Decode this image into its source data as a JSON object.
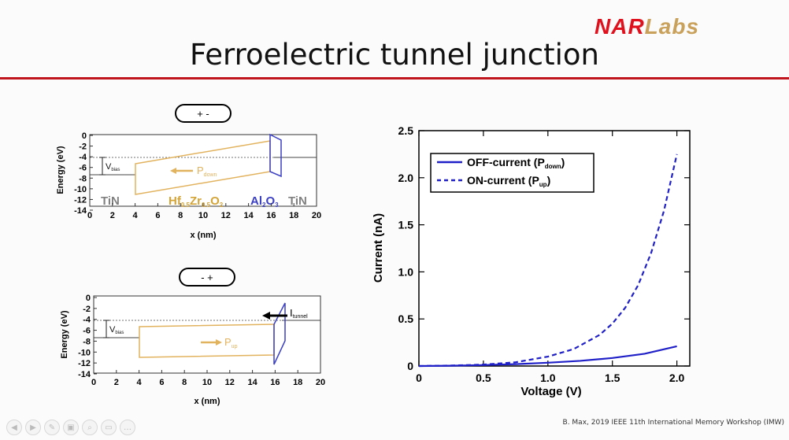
{
  "logo": {
    "part1": "NAR",
    "part2": "Labs"
  },
  "slide_title": "Ferroelectric tunnel junction",
  "top_diagram": {
    "bias_box": "+   -",
    "ylabel": "Energy (eV)",
    "xlabel": "x (nm)",
    "yticks": [
      "0",
      "-2",
      "-4",
      "-6",
      "-8",
      "-10",
      "-12",
      "-14"
    ],
    "xticks": [
      "0",
      "2",
      "4",
      "6",
      "8",
      "10",
      "12",
      "14",
      "16",
      "18",
      "20"
    ],
    "vbias_main": "V",
    "vbias_sub": "bias",
    "p_main": "P",
    "p_sub": "down",
    "tin_left": "TiN",
    "hzo": [
      "Hf",
      "0.5",
      "Zr",
      "0.5",
      "O",
      "2"
    ],
    "al2o3": [
      "Al",
      "2",
      "O",
      "3"
    ],
    "tin_right": "TiN",
    "colors": {
      "barrier": "#e2b35e",
      "al2o3": "#3b3fc4",
      "label_gold": "#d4a437",
      "label_gray": "#808080"
    }
  },
  "bottom_diagram": {
    "bias_box": "-   +",
    "ylabel": "Energy (eV)",
    "xlabel": "x (nm)",
    "yticks": [
      "0",
      "-2",
      "-4",
      "-6",
      "-8",
      "-10",
      "-12",
      "-14"
    ],
    "xticks": [
      "0",
      "2",
      "4",
      "6",
      "8",
      "10",
      "12",
      "14",
      "16",
      "18",
      "20"
    ],
    "vbias_main": "V",
    "vbias_sub": "bias",
    "p_main": "P",
    "p_sub": "up",
    "i_main": "I",
    "i_sub": "tunnel"
  },
  "chart_data": {
    "type": "line",
    "xlabel": "Voltage (V)",
    "ylabel": "Current (nA)",
    "xlim": [
      0,
      2.1
    ],
    "ylim": [
      0,
      2.5
    ],
    "xticks": [
      "0",
      "0.5",
      "1.0",
      "1.5",
      "2.0"
    ],
    "yticks": [
      "0",
      "0.5",
      "1.0",
      "1.5",
      "2.0",
      "2.5"
    ],
    "legend_position": "top-left",
    "series": [
      {
        "name": "OFF-current (Pdown)",
        "legend_main": "OFF-current (P",
        "legend_sub": "down",
        "legend_end": ")",
        "style": "solid",
        "color": "#2020c8",
        "x": [
          0,
          0.25,
          0.5,
          0.75,
          1.0,
          1.25,
          1.5,
          1.75,
          2.0
        ],
        "y": [
          0,
          0.003,
          0.01,
          0.02,
          0.035,
          0.055,
          0.085,
          0.13,
          0.21
        ]
      },
      {
        "name": "ON-current (Pup)",
        "legend_main": "ON-current (P",
        "legend_sub": "up",
        "legend_end": ")",
        "style": "dashed",
        "color": "#2020c8",
        "x": [
          0,
          0.25,
          0.5,
          0.75,
          1.0,
          1.2,
          1.4,
          1.5,
          1.6,
          1.7,
          1.8,
          1.9,
          2.0
        ],
        "y": [
          0,
          0.005,
          0.015,
          0.04,
          0.1,
          0.18,
          0.33,
          0.45,
          0.62,
          0.86,
          1.2,
          1.65,
          2.25
        ]
      }
    ]
  },
  "citation": "B. Max, 2019 IEEE 11th International Memory Workshop (IMW)",
  "toolbar": {
    "icons": [
      "prev-icon",
      "next-icon",
      "pen-icon",
      "pages-icon",
      "zoom-icon",
      "subtitle-icon",
      "more-icon"
    ],
    "glyphs": [
      "◀",
      "▶",
      "✎",
      "▣",
      "⌕",
      "▭",
      "…"
    ]
  }
}
